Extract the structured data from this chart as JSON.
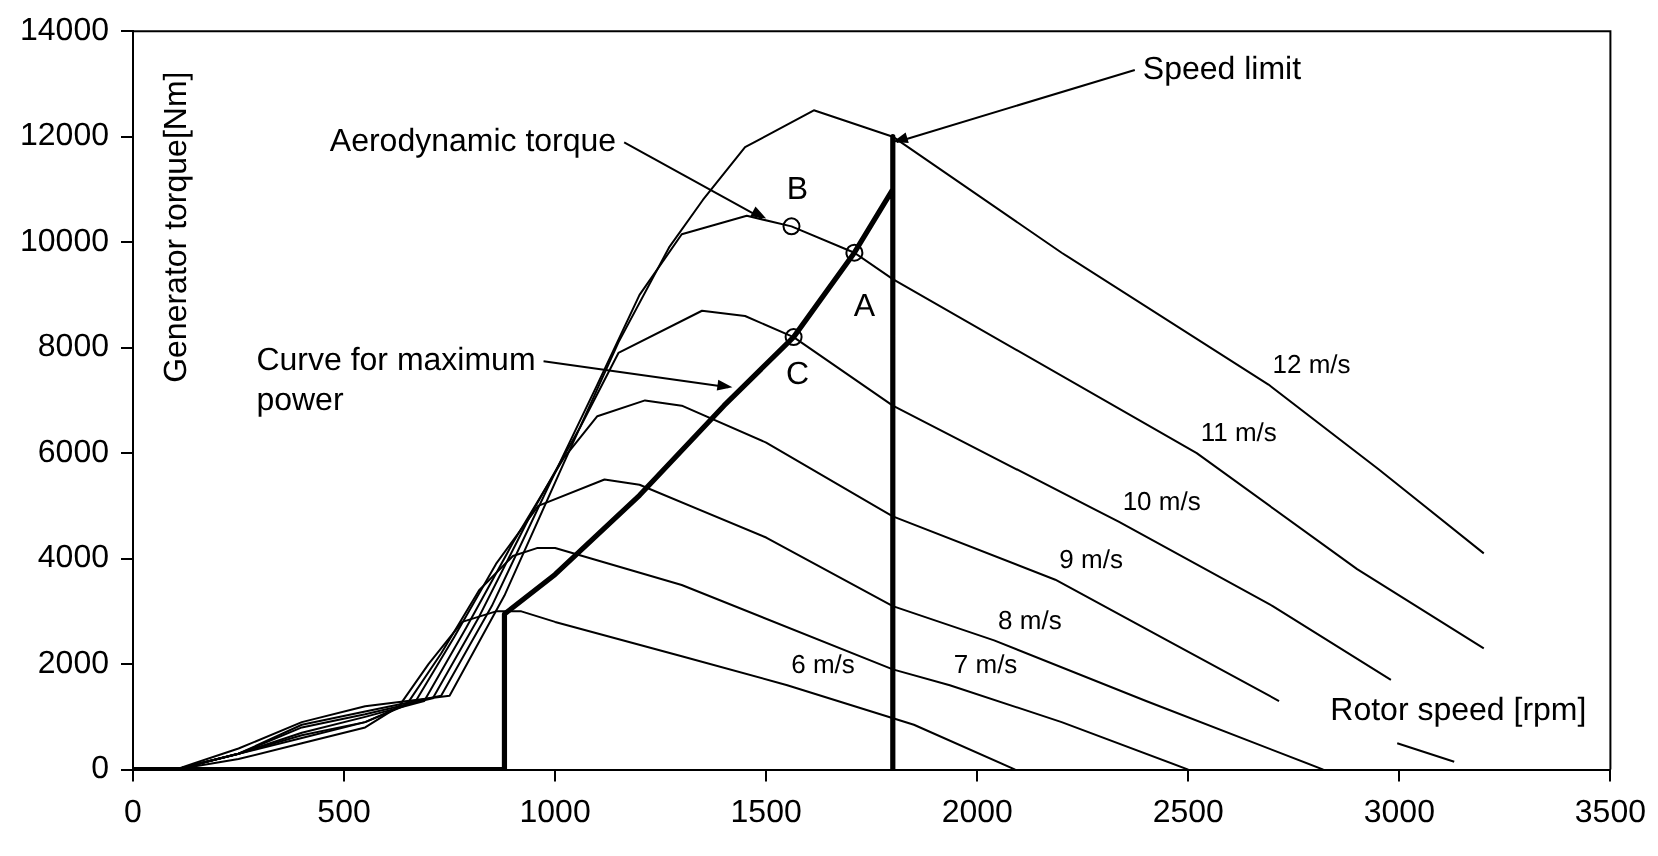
{
  "chart_data": {
    "type": "line",
    "xlabel": "Rotor speed [rpm]",
    "ylabel": "Generator torque[Nm]",
    "xlim": [
      0,
      3500
    ],
    "xticks": [
      0,
      500,
      1000,
      1500,
      2000,
      2500,
      3000,
      3500
    ],
    "ylim": [
      0,
      14000
    ],
    "yticks": [
      0,
      2000,
      4000,
      6000,
      8000,
      10000,
      12000,
      14000
    ],
    "grid": false,
    "legend": false,
    "series": [
      {
        "name": "6 m/s",
        "color": "#000000",
        "x": [
          100,
          250,
          400,
          550,
          630,
          700,
          780,
          860,
          920,
          1000,
          1300,
          1550,
          1850,
          2090
        ],
        "values": [
          0,
          200,
          500,
          800,
          1200,
          2000,
          2800,
          3000,
          3000,
          2800,
          2150,
          1600,
          850,
          0
        ]
      },
      {
        "name": "7 m/s",
        "color": "#000000",
        "x": [
          100,
          250,
          400,
          550,
          650,
          730,
          820,
          900,
          957,
          1000,
          1300,
          1800,
          1935,
          2200,
          2500
        ],
        "values": [
          0,
          300,
          600,
          900,
          1250,
          2200,
          3400,
          4050,
          4200,
          4200,
          3500,
          1900,
          1600,
          900,
          0
        ]
      },
      {
        "name": "8 m/s",
        "color": "#000000",
        "x": [
          100,
          250,
          400,
          550,
          670,
          760,
          860,
          960,
          1117,
          1200,
          1500,
          1800,
          2040,
          2400,
          2820
        ],
        "values": [
          0,
          300,
          650,
          900,
          1300,
          2500,
          3900,
          5000,
          5500,
          5400,
          4400,
          3100,
          2450,
          1300,
          0
        ]
      },
      {
        "name": "9 m/s",
        "color": "#000000",
        "x": [
          100,
          250,
          400,
          550,
          690,
          790,
          900,
          1020,
          1100,
          1213,
          1300,
          1500,
          1800,
          2185,
          2450,
          2715,
          2850,
          2995,
          3130
        ],
        "values": [
          0,
          300,
          700,
          1000,
          1300,
          2700,
          4300,
          5900,
          6700,
          7000,
          6900,
          6200,
          4800,
          3600,
          2450,
          1300,
          null,
          500,
          150
        ]
      },
      {
        "name": "10 m/s",
        "color": "#000000",
        "x": [
          100,
          250,
          400,
          550,
          710,
          820,
          940,
          1060,
          1150,
          1348,
          1450,
          1565,
          1800,
          2335,
          2700,
          2980
        ],
        "values": [
          0,
          300,
          800,
          1050,
          1350,
          2900,
          4800,
          6500,
          7900,
          8700,
          8600,
          8200,
          6900,
          4700,
          3100,
          1700
        ]
      },
      {
        "name": "11 m/s",
        "color": "#000000",
        "x": [
          100,
          250,
          400,
          550,
          730,
          850,
          980,
          1100,
          1200,
          1300,
          1454,
          1560,
          1709,
          1800,
          2520,
          2900,
          3200
        ],
        "values": [
          0,
          300,
          850,
          1100,
          1400,
          3100,
          5300,
          7300,
          9000,
          10150,
          10500,
          10300,
          9800,
          9300,
          6000,
          3800,
          2300
        ]
      },
      {
        "name": "12 m/s",
        "color": "#000000",
        "x": [
          100,
          250,
          400,
          550,
          750,
          880,
          1020,
          1150,
          1270,
          1350,
          1450,
          1613,
          1800,
          2200,
          2690,
          2950,
          3200
        ],
        "values": [
          0,
          400,
          900,
          1200,
          1400,
          3300,
          5800,
          8100,
          9900,
          10800,
          11800,
          12500,
          12000,
          9800,
          7300,
          5700,
          4100
        ]
      },
      {
        "color": "#000000",
        "x": [
          0,
          880,
          880,
          1000,
          1200,
          1400,
          1565,
          1709,
          1800,
          1800,
          1800
        ],
        "values": [
          0,
          0,
          2950,
          3700,
          5200,
          6900,
          8200,
          9800,
          11000,
          12000,
          0
        ]
      },
      {
        "type": "scatter",
        "marker": "circle",
        "color": "#000000",
        "x": [
          1709,
          1560,
          1565
        ],
        "values": [
          9800,
          10300,
          8200
        ]
      }
    ],
    "annotations": [
      {
        "text": "Aerodynamic torque",
        "x": 1500,
        "y": 10450
      },
      {
        "text": "Curve for maximum power",
        "x": 1420,
        "y": 7250
      },
      {
        "text": "Speed limit",
        "x": 1800,
        "y": 11900
      },
      {
        "text": "A",
        "x": 1709,
        "y": 9800
      },
      {
        "text": "B",
        "x": 1560,
        "y": 10300
      },
      {
        "text": "C",
        "x": 1565,
        "y": 8200
      }
    ]
  }
}
